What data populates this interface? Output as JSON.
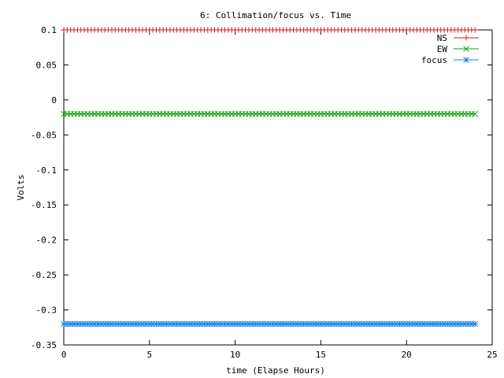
{
  "chart_data": {
    "type": "line",
    "title": "6: Collimation/focus vs. Time",
    "xlabel": "time (Elapse Hours)",
    "ylabel": "Volts",
    "xlim": [
      0,
      25
    ],
    "ylim": [
      -0.35,
      0.1
    ],
    "x_ticks": [
      0,
      5,
      10,
      15,
      20,
      25
    ],
    "x_tick_labels": [
      "0",
      "5",
      "10",
      "15",
      "20",
      "25"
    ],
    "y_ticks": [
      0.1,
      0.05,
      0,
      -0.05,
      -0.1,
      -0.15,
      -0.2,
      -0.25,
      -0.3,
      -0.35
    ],
    "y_tick_labels": [
      "0.1",
      "0.05",
      "0",
      "-0.05",
      "-0.1",
      "-0.15",
      "-0.2",
      "-0.25",
      "-0.3",
      "-0.35"
    ],
    "grid": false,
    "legend_position": "top-right",
    "x_range_sampled": [
      0,
      24
    ],
    "sample_interval_hours": 0.2,
    "series": [
      {
        "name": "NS",
        "value": 0.1,
        "color": "#d11a1a",
        "marker": "plus"
      },
      {
        "name": "EW",
        "value": -0.02,
        "color": "#0aa00a",
        "marker": "cross"
      },
      {
        "name": "focus",
        "value": -0.32,
        "color": "#1a7fe0",
        "marker": "star"
      }
    ]
  }
}
